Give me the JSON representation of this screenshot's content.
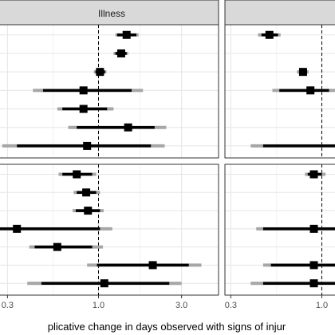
{
  "chart_data": {
    "type": "forest",
    "x_scale": "log",
    "xlabel": "plicative change in days observed with signs of injur",
    "x_ticks": [
      {
        "value": 0.3,
        "label": "0.3"
      },
      {
        "value": 1.0,
        "label": "1.0"
      },
      {
        "value": 3.0,
        "label": "3.0"
      }
    ],
    "reference_line": 1.0,
    "grid": true,
    "panels": [
      {
        "strip": "Illness",
        "rows": [
          {
            "estimate": 1.45,
            "lo_inner": 1.28,
            "hi_inner": 1.65,
            "lo_outer": 1.25,
            "hi_outer": 1.7
          },
          {
            "estimate": 1.35,
            "lo_inner": 1.25,
            "hi_inner": 1.45,
            "lo_outer": 1.22,
            "hi_outer": 1.48
          },
          {
            "estimate": 1.02,
            "lo_inner": 0.96,
            "hi_inner": 1.09,
            "lo_outer": 0.94,
            "hi_outer": 1.11
          },
          {
            "estimate": 0.82,
            "lo_inner": 0.48,
            "hi_inner": 1.55,
            "lo_outer": 0.42,
            "hi_outer": 1.8
          },
          {
            "estimate": 0.82,
            "lo_inner": 0.62,
            "hi_inner": 1.12,
            "lo_outer": 0.58,
            "hi_outer": 1.22
          },
          {
            "estimate": 1.48,
            "lo_inner": 0.75,
            "hi_inner": 2.1,
            "lo_outer": 0.67,
            "hi_outer": 2.45
          },
          {
            "estimate": 0.86,
            "lo_inner": 0.34,
            "hi_inner": 2.0,
            "lo_outer": 0.28,
            "hi_outer": 2.4
          }
        ]
      },
      {
        "strip": "",
        "rows": [
          {
            "estimate": 0.5,
            "lo_inner": 0.45,
            "hi_inner": 0.56,
            "lo_outer": 0.43,
            "hi_outer": 0.58
          },
          {
            "estimate": null
          },
          {
            "estimate": 0.78,
            "lo_inner": 0.74,
            "hi_inner": 0.82,
            "lo_outer": 0.72,
            "hi_outer": 0.84
          },
          {
            "estimate": 0.86,
            "lo_inner": 0.57,
            "hi_inner": 1.1,
            "lo_outer": 0.52,
            "hi_outer": 1.3
          },
          {
            "estimate": null
          },
          {
            "estimate": null
          },
          {
            "estimate": 1.3,
            "lo_inner": 0.46,
            "hi_inner": 1.6,
            "lo_outer": 0.39,
            "hi_outer": 1.6
          }
        ]
      },
      {
        "strip": "",
        "rows": [
          {
            "estimate": 0.75,
            "lo_inner": 0.62,
            "hi_inner": 0.92,
            "lo_outer": 0.59,
            "hi_outer": 0.97
          },
          {
            "estimate": 0.85,
            "lo_inner": 0.75,
            "hi_inner": 0.97,
            "lo_outer": 0.72,
            "hi_outer": 1.02
          },
          {
            "estimate": 0.87,
            "lo_inner": 0.74,
            "hi_inner": 1.02,
            "lo_outer": 0.71,
            "hi_outer": 1.07
          },
          {
            "estimate": 0.34,
            "lo_inner": 0.12,
            "hi_inner": 1.02,
            "lo_outer": 0.12,
            "hi_outer": 1.2
          },
          {
            "estimate": 0.58,
            "lo_inner": 0.43,
            "hi_inner": 0.92,
            "lo_outer": 0.4,
            "hi_outer": 1.06
          },
          {
            "estimate": 2.05,
            "lo_inner": 0.98,
            "hi_inner": 3.3,
            "lo_outer": 0.86,
            "hi_outer": 3.9
          },
          {
            "estimate": 1.08,
            "lo_inner": 0.47,
            "hi_inner": 2.55,
            "lo_outer": 0.39,
            "hi_outer": 3.0
          }
        ]
      },
      {
        "strip": "",
        "rows": [
          {
            "estimate": 0.9,
            "lo_inner": 0.83,
            "hi_inner": 1.0,
            "lo_outer": 0.8,
            "hi_outer": 1.05
          },
          {
            "estimate": null
          },
          {
            "estimate": null
          },
          {
            "estimate": 0.9,
            "lo_inner": 0.46,
            "hi_inner": 1.6,
            "lo_outer": 0.42,
            "hi_outer": 1.6
          },
          {
            "estimate": null
          },
          {
            "estimate": 0.9,
            "lo_inner": 0.51,
            "hi_inner": 1.6,
            "lo_outer": 0.46,
            "hi_outer": 1.6
          },
          {
            "estimate": 0.9,
            "lo_inner": 0.46,
            "hi_inner": 1.6,
            "lo_outer": 0.39,
            "hi_outer": 1.6
          }
        ]
      }
    ]
  }
}
